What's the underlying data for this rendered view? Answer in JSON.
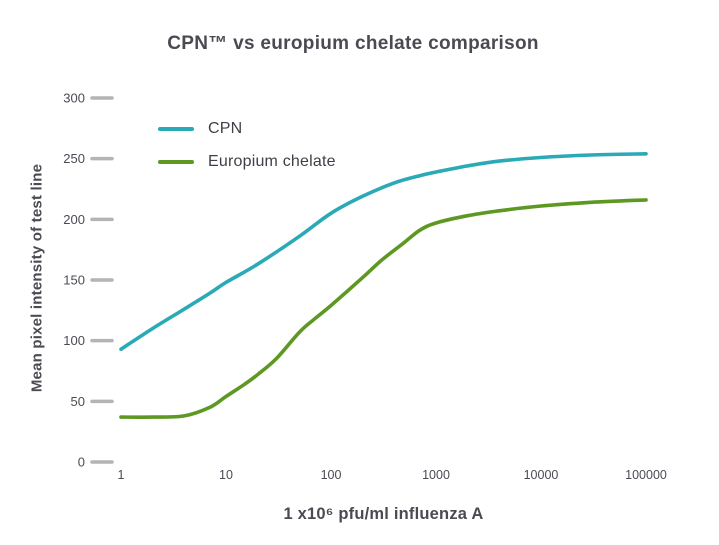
{
  "title": "CPN™ vs europium chelate comparison",
  "colors": {
    "cpn_line": "#2aa9b7",
    "europium_line": "#5c9822",
    "title_text": "#4a4a52",
    "tick_text": "#4b4b54",
    "tick_mark": "#b4b4b7",
    "legend_text": "#3f3f47",
    "background": "#ffffff"
  },
  "chart_data": {
    "type": "line",
    "title": "CPN™ vs europium chelate comparison",
    "xlabel": "1 x10⁶ pfu/ml influenza A",
    "ylabel": "Mean pixel intensity of test line",
    "x_scale": "log10",
    "xlim": [
      1,
      100000
    ],
    "ylim": [
      0,
      300
    ],
    "x_ticks": [
      1,
      10,
      100,
      1000,
      10000,
      100000
    ],
    "y_ticks": [
      0,
      50,
      100,
      150,
      200,
      250,
      300
    ],
    "grid": false,
    "legend_position": "inside-top-left",
    "series": [
      {
        "name": "CPN",
        "color": "#2aa9b7",
        "points": [
          [
            1,
            93
          ],
          [
            2,
            110
          ],
          [
            4,
            126
          ],
          [
            7,
            139
          ],
          [
            10,
            148
          ],
          [
            20,
            163
          ],
          [
            50,
            186
          ],
          [
            100,
            205
          ],
          [
            200,
            219
          ],
          [
            400,
            230
          ],
          [
            700,
            236
          ],
          [
            1000,
            239
          ],
          [
            2000,
            244
          ],
          [
            4000,
            248
          ],
          [
            10000,
            251
          ],
          [
            30000,
            253
          ],
          [
            100000,
            254
          ]
        ]
      },
      {
        "name": "Europium chelate",
        "color": "#5c9822",
        "points": [
          [
            1,
            37
          ],
          [
            2,
            37
          ],
          [
            4,
            38
          ],
          [
            7,
            45
          ],
          [
            10,
            54
          ],
          [
            15,
            64
          ],
          [
            20,
            72
          ],
          [
            30,
            85
          ],
          [
            50,
            107
          ],
          [
            70,
            118
          ],
          [
            100,
            129
          ],
          [
            200,
            152
          ],
          [
            300,
            166
          ],
          [
            500,
            181
          ],
          [
            700,
            191
          ],
          [
            1000,
            197
          ],
          [
            2000,
            203
          ],
          [
            4000,
            207
          ],
          [
            10000,
            211
          ],
          [
            30000,
            214
          ],
          [
            100000,
            216
          ]
        ]
      }
    ]
  }
}
